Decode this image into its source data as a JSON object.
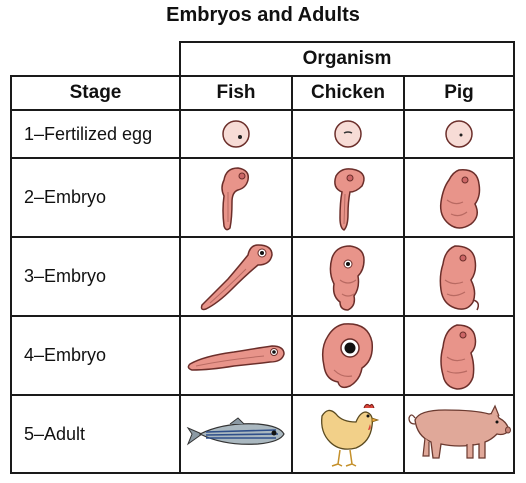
{
  "title": "Embryos and Adults",
  "header": {
    "group": "Organism",
    "stage": "Stage",
    "organisms": [
      "Fish",
      "Chicken",
      "Pig"
    ]
  },
  "rows": [
    {
      "stage": "1–Fertilized egg"
    },
    {
      "stage": "2–Embryo"
    },
    {
      "stage": "3–Embryo"
    },
    {
      "stage": "4–Embryo"
    },
    {
      "stage": "5–Adult"
    }
  ],
  "colors": {
    "embryo_fill": "#e8948a",
    "embryo_stroke": "#6b2e2a",
    "egg_fill": "#f7dcd6",
    "fish_body": "#aab8c0",
    "fish_stripe": "#2f4f8a",
    "chicken_body": "#f2d089",
    "chicken_comb": "#d9453a",
    "pig_body": "#e0a899"
  }
}
